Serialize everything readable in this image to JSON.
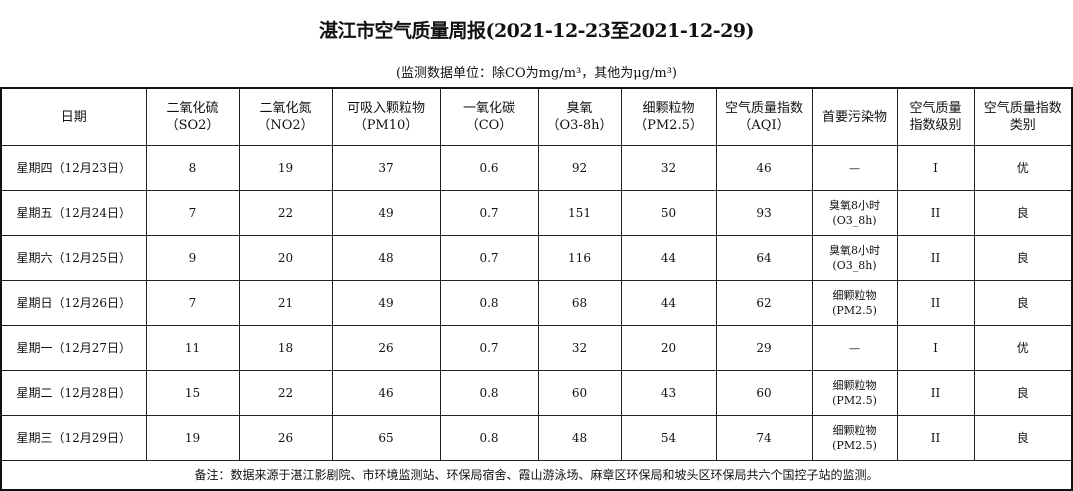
{
  "title": "湛江市空气质量周报(2021-12-23至2021-12-29)",
  "subtitle": "(监测数据单位：除CO为mg/m³，其他为μg/m³)",
  "headers": [
    [
      "日期",
      ""
    ],
    [
      "二氧化硫",
      "（SO2）"
    ],
    [
      "二氧化氮",
      "（NO2）"
    ],
    [
      "可吸入颗粒物",
      "（PM10）"
    ],
    [
      "一氧化碳",
      "（CO）"
    ],
    [
      "臭氧",
      "（O3-8h）"
    ],
    [
      "细颗粒物",
      "（PM2.5）"
    ],
    [
      "空气质量指数",
      "（AQI）"
    ],
    [
      "首要污染物",
      ""
    ],
    [
      "空气质量",
      "指数级别"
    ],
    [
      "空气质量指数",
      "类别"
    ]
  ],
  "rows": [
    {
      "date": "星期四（12月23日）",
      "so2": "8",
      "no2": "19",
      "pm10": "37",
      "co": "0.6",
      "o3": "92",
      "pm25": "32",
      "aqi": "46",
      "pollutant": [
        "—",
        ""
      ],
      "level": "I",
      "category": "优"
    },
    {
      "date": "星期五（12月24日）",
      "so2": "7",
      "no2": "22",
      "pm10": "49",
      "co": "0.7",
      "o3": "151",
      "pm25": "50",
      "aqi": "93",
      "pollutant": [
        "臭氧8小时",
        "(O3_8h)"
      ],
      "level": "II",
      "category": "良"
    },
    {
      "date": "星期六（12月25日）",
      "so2": "9",
      "no2": "20",
      "pm10": "48",
      "co": "0.7",
      "o3": "116",
      "pm25": "44",
      "aqi": "64",
      "pollutant": [
        "臭氧8小时",
        "(O3_8h)"
      ],
      "level": "II",
      "category": "良"
    },
    {
      "date": "星期日（12月26日）",
      "so2": "7",
      "no2": "21",
      "pm10": "49",
      "co": "0.8",
      "o3": "68",
      "pm25": "44",
      "aqi": "62",
      "pollutant": [
        "细颗粒物",
        "(PM2.5)"
      ],
      "level": "II",
      "category": "良"
    },
    {
      "date": "星期一（12月27日）",
      "so2": "11",
      "no2": "18",
      "pm10": "26",
      "co": "0.7",
      "o3": "32",
      "pm25": "20",
      "aqi": "29",
      "pollutant": [
        "—",
        ""
      ],
      "level": "I",
      "category": "优"
    },
    {
      "date": "星期二（12月28日）",
      "so2": "15",
      "no2": "22",
      "pm10": "46",
      "co": "0.8",
      "o3": "60",
      "pm25": "43",
      "aqi": "60",
      "pollutant": [
        "细颗粒物",
        "(PM2.5)"
      ],
      "level": "II",
      "category": "良"
    },
    {
      "date": "星期三（12月29日）",
      "so2": "19",
      "no2": "26",
      "pm10": "65",
      "co": "0.8",
      "o3": "48",
      "pm25": "54",
      "aqi": "74",
      "pollutant": [
        "细颗粒物",
        "(PM2.5)"
      ],
      "level": "II",
      "category": "良"
    }
  ],
  "note": "备注：数据来源于湛江影剧院、市环境监测站、环保局宿舍、霞山游泳场、麻章区环保局和坡头区环保局共六个国控子站的监测。"
}
